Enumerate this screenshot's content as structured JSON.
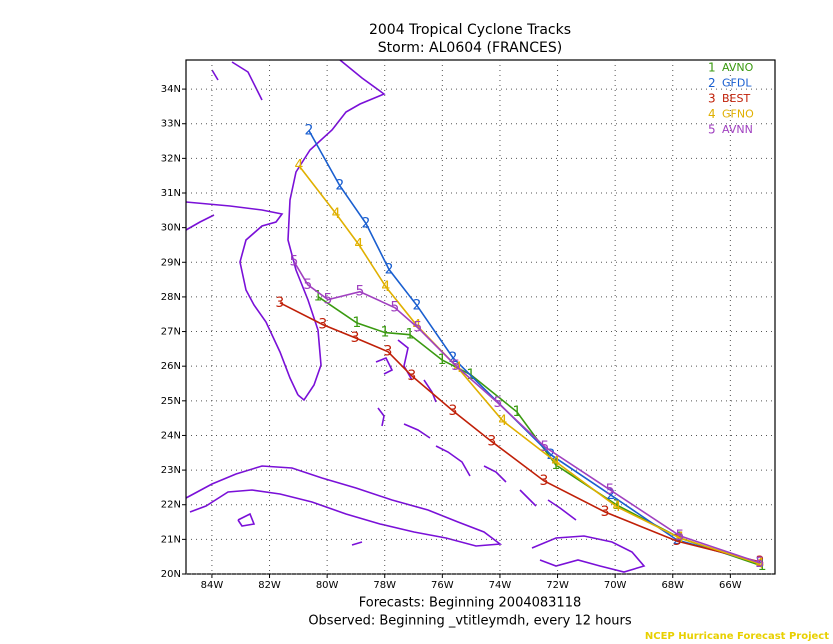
{
  "chart_data": {
    "type": "track",
    "title": "2004 Tropical Cyclone Tracks",
    "subtitle": "Storm: AL0604 (FRANCES)",
    "xlabel": "Forecasts: Beginning 2004083118",
    "xlabel2": "Observed: Beginning _vtitleymdh, every 12 hours",
    "footer": "NCEP Hurricane Forecast Project",
    "xlim": [
      -84.9,
      -64.45
    ],
    "ylim": [
      20,
      34.84
    ],
    "grid": true,
    "legend": "upper right",
    "xticks": [
      {
        "value": -84,
        "label": "84W"
      },
      {
        "value": -82,
        "label": "82W"
      },
      {
        "value": -80,
        "label": "80W"
      },
      {
        "value": -78,
        "label": "78W"
      },
      {
        "value": -76,
        "label": "76W"
      },
      {
        "value": -74,
        "label": "74W"
      },
      {
        "value": -72,
        "label": "72W"
      },
      {
        "value": -70,
        "label": "70W"
      },
      {
        "value": -68,
        "label": "68W"
      },
      {
        "value": -66,
        "label": "66W"
      }
    ],
    "yticks": [
      {
        "value": 20,
        "label": "20N"
      },
      {
        "value": 21,
        "label": "21N"
      },
      {
        "value": 22,
        "label": "22N"
      },
      {
        "value": 23,
        "label": "23N"
      },
      {
        "value": 24,
        "label": "24N"
      },
      {
        "value": 25,
        "label": "25N"
      },
      {
        "value": 26,
        "label": "26N"
      },
      {
        "value": 27,
        "label": "27N"
      },
      {
        "value": 28,
        "label": "28N"
      },
      {
        "value": 29,
        "label": "29N"
      },
      {
        "value": 30,
        "label": "30N"
      },
      {
        "value": 31,
        "label": "31N"
      },
      {
        "value": 32,
        "label": "32N"
      },
      {
        "value": 33,
        "label": "33N"
      },
      {
        "value": 34,
        "label": "34N"
      }
    ],
    "series": [
      {
        "marker": "1",
        "name": "AVNO",
        "color": "#3a9a10",
        "x": [
          -80.32,
          -78.97,
          -77.99,
          -77.13,
          -76.01,
          -75.01,
          -73.41,
          -72.06,
          -69.94,
          -67.75,
          -64.9
        ],
        "y": [
          28.01,
          27.25,
          26.97,
          26.91,
          26.18,
          25.75,
          24.68,
          23.15,
          21.99,
          21.04,
          20.23
        ]
      },
      {
        "marker": "2",
        "name": "GFDL",
        "color": "#1a5fd0",
        "x": [
          -80.63,
          -79.56,
          -78.65,
          -77.85,
          -76.88,
          -75.63,
          -72.23,
          -70.15,
          -67.85,
          -64.97
        ],
        "y": [
          32.8,
          31.21,
          30.12,
          28.79,
          27.75,
          26.24,
          23.44,
          22.28,
          20.98,
          20.32
        ]
      },
      {
        "marker": "3",
        "name": "BEST",
        "color": "#c02008",
        "x": [
          -81.64,
          -80.15,
          -79.03,
          -77.89,
          -77.06,
          -75.63,
          -74.28,
          -72.47,
          -70.35,
          -67.85,
          -64.97
        ],
        "y": [
          27.83,
          27.2,
          26.82,
          26.42,
          25.72,
          24.71,
          23.82,
          22.69,
          21.79,
          20.95,
          20.35
        ]
      },
      {
        "marker": "4",
        "name": "GFNO",
        "color": "#e0b000",
        "x": [
          -80.98,
          -79.69,
          -78.9,
          -77.96,
          -76.88,
          -75.46,
          -73.9,
          -72.06,
          -69.94,
          -67.75,
          -64.97
        ],
        "y": [
          31.79,
          30.4,
          29.51,
          28.29,
          27.17,
          25.95,
          24.42,
          23.24,
          21.94,
          21.04,
          20.29
        ]
      },
      {
        "marker": "5",
        "name": "AVNN",
        "color": "#a040c0",
        "x": [
          -81.15,
          -80.67,
          -79.97,
          -78.86,
          -77.65,
          -76.85,
          -75.53,
          -74.07,
          -72.44,
          -70.18,
          -67.75,
          -64.97
        ],
        "y": [
          29.02,
          28.35,
          27.92,
          28.15,
          27.69,
          27.11,
          26.01,
          24.94,
          23.67,
          22.43,
          21.1,
          20.32
        ]
      }
    ]
  }
}
